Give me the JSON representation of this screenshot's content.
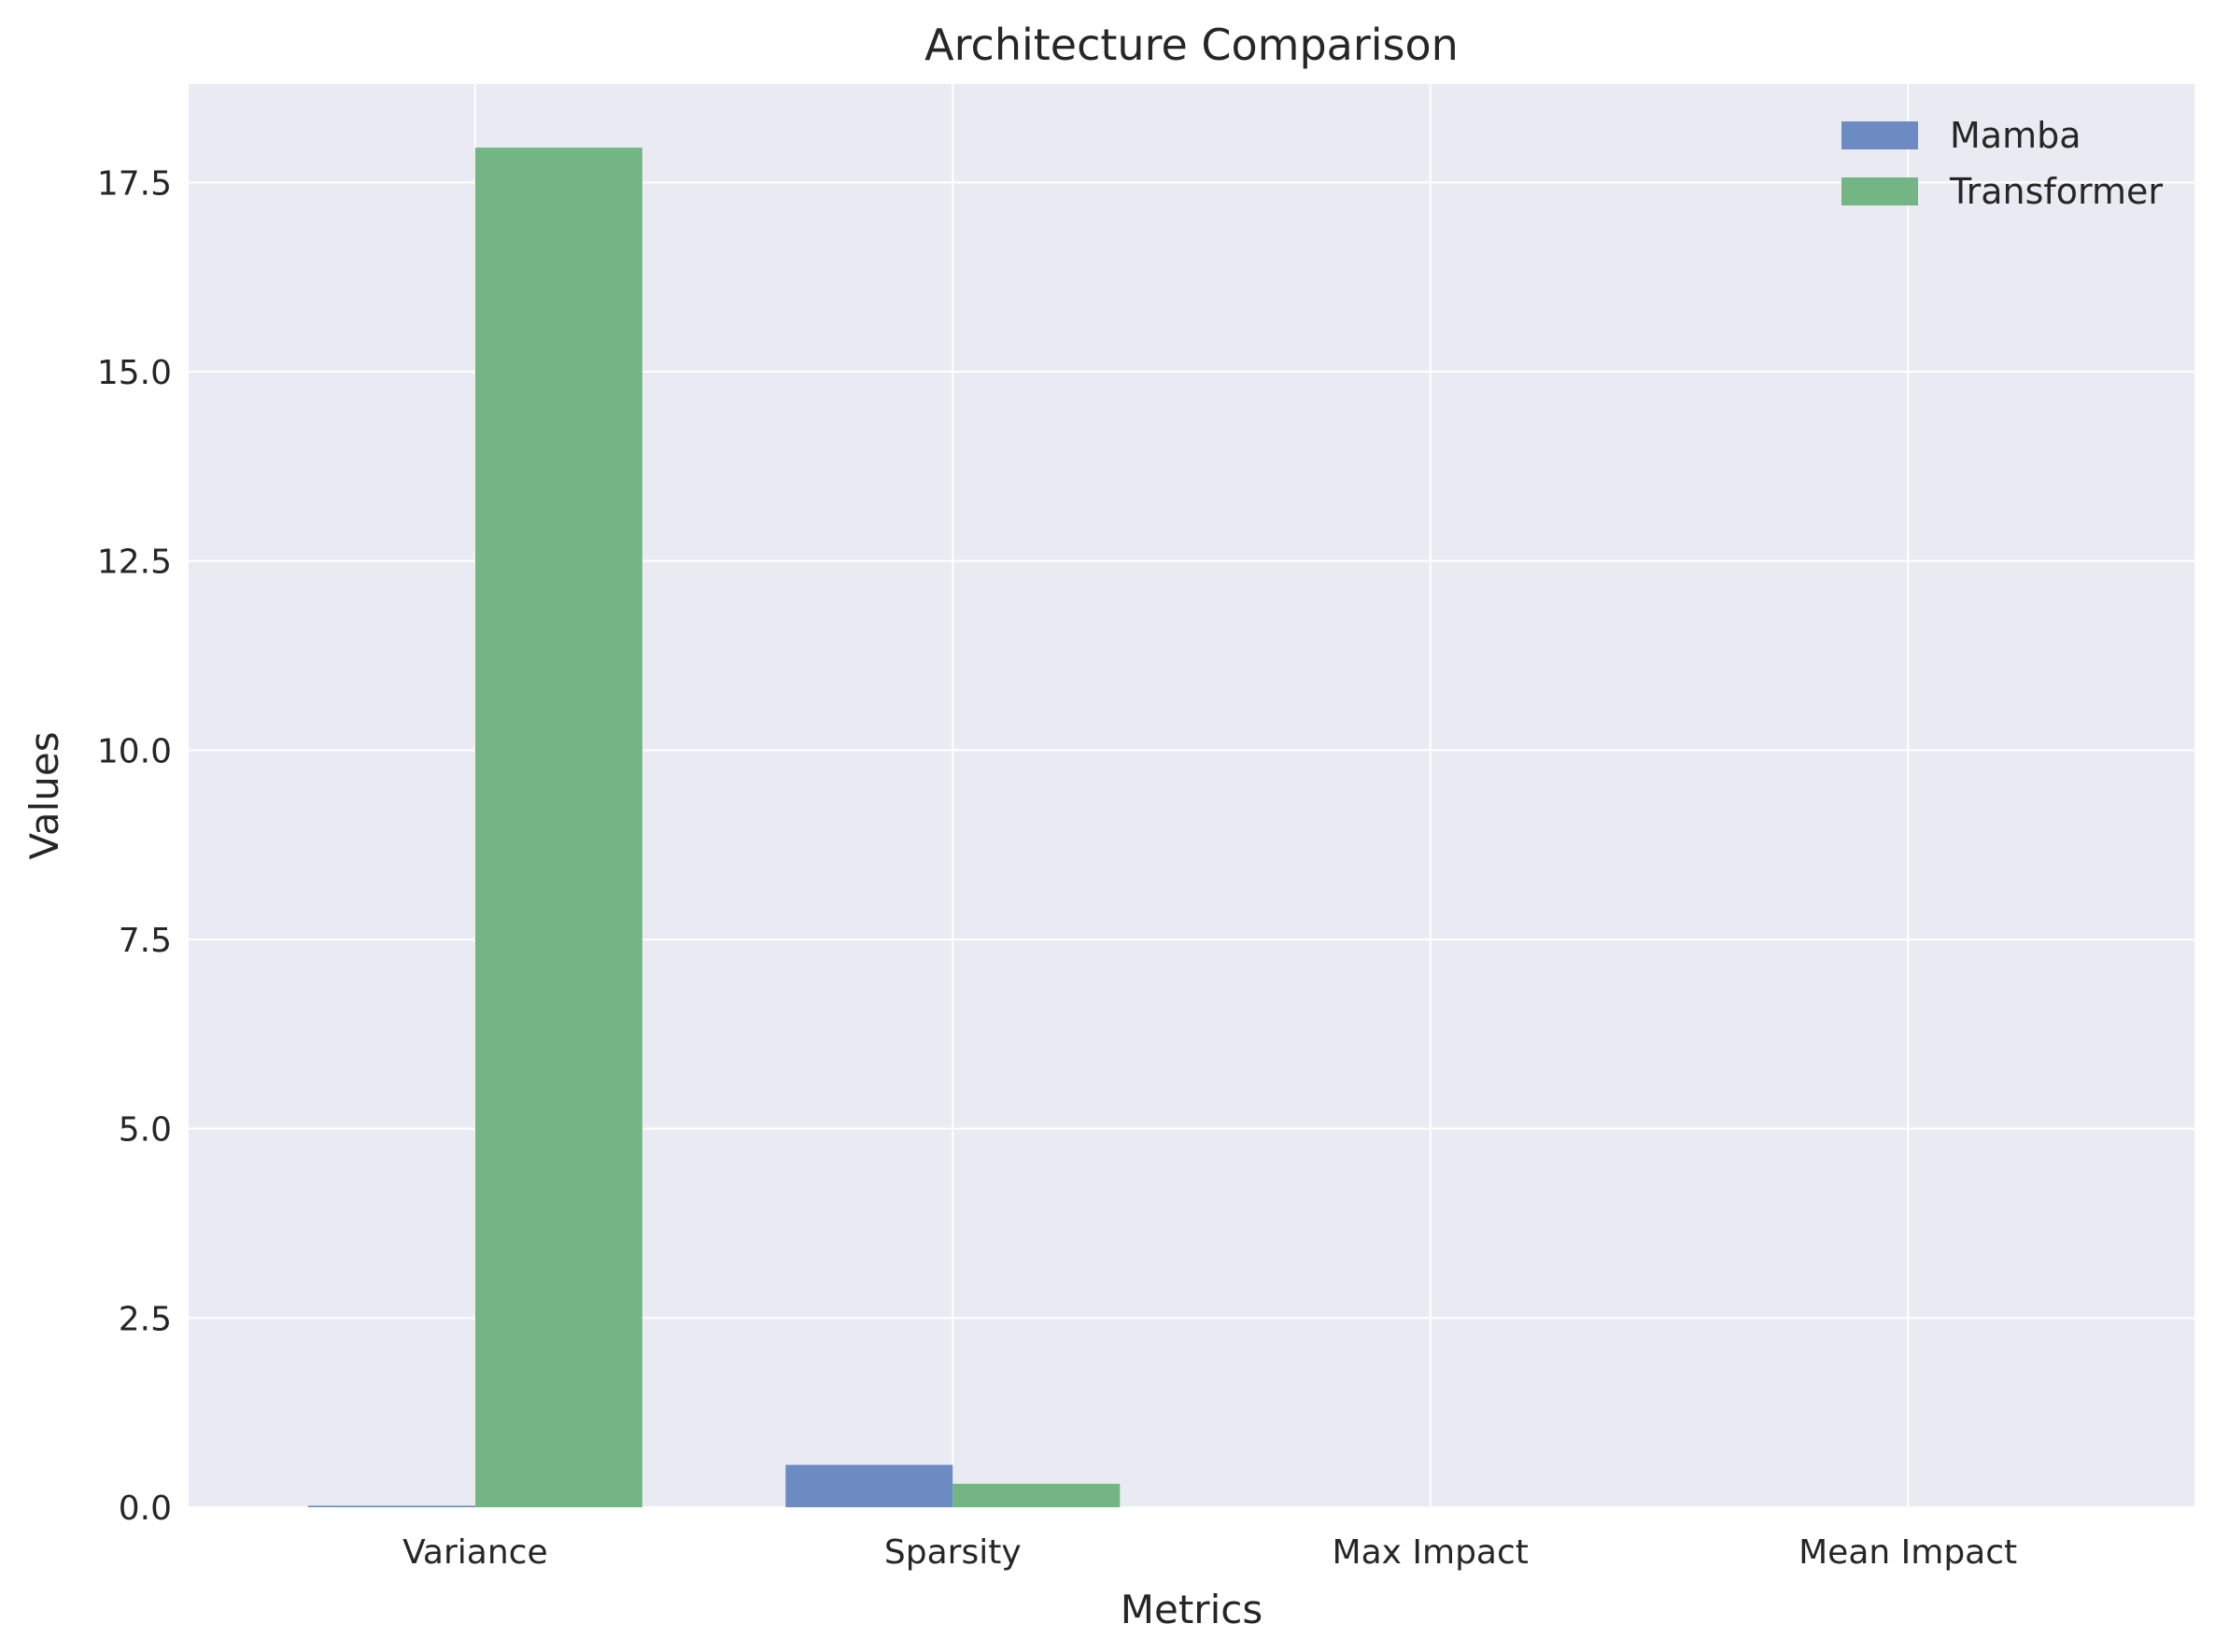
{
  "chart_data": {
    "type": "bar",
    "title": "Architecture Comparison",
    "xlabel": "Metrics",
    "ylabel": "Values",
    "categories": [
      "Variance",
      "Sparsity",
      "Max Impact",
      "Mean Impact"
    ],
    "series": [
      {
        "name": "Mamba",
        "color": "#6b8bc2",
        "values": [
          0.02,
          0.56,
          0.0,
          0.0
        ]
      },
      {
        "name": "Transformer",
        "color": "#74b584",
        "values": [
          17.96,
          0.31,
          0.0,
          0.0
        ]
      }
    ],
    "ylim": [
      0,
      18.8
    ],
    "yticks": [
      0.0,
      2.5,
      5.0,
      7.5,
      10.0,
      12.5,
      15.0,
      17.5
    ],
    "ytick_labels": [
      "0.0",
      "2.5",
      "5.0",
      "7.5",
      "10.0",
      "12.5",
      "15.0",
      "17.5"
    ],
    "grid": true,
    "legend_position": "top-right",
    "background_color": "#eaeaf2",
    "grid_color": "#ffffff"
  }
}
